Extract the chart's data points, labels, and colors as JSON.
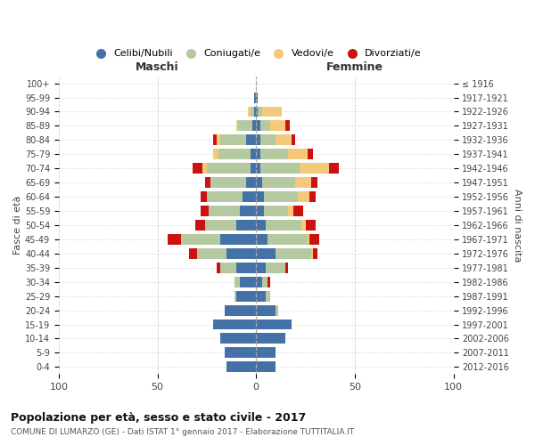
{
  "age_groups": [
    "0-4",
    "5-9",
    "10-14",
    "15-19",
    "20-24",
    "25-29",
    "30-34",
    "35-39",
    "40-44",
    "45-49",
    "50-54",
    "55-59",
    "60-64",
    "65-69",
    "70-74",
    "75-79",
    "80-84",
    "85-89",
    "90-94",
    "95-99",
    "100+"
  ],
  "birth_years": [
    "2012-2016",
    "2007-2011",
    "2002-2006",
    "1997-2001",
    "1992-1996",
    "1987-1991",
    "1982-1986",
    "1977-1981",
    "1972-1976",
    "1967-1971",
    "1962-1966",
    "1957-1961",
    "1952-1956",
    "1947-1951",
    "1942-1946",
    "1937-1941",
    "1932-1936",
    "1927-1931",
    "1922-1926",
    "1917-1921",
    "≤ 1916"
  ],
  "maschi": {
    "celibi": [
      15,
      16,
      18,
      22,
      16,
      10,
      8,
      10,
      15,
      18,
      10,
      8,
      7,
      5,
      3,
      3,
      5,
      2,
      1,
      1,
      0
    ],
    "coniugati": [
      0,
      0,
      0,
      0,
      0,
      1,
      3,
      8,
      15,
      20,
      16,
      16,
      18,
      18,
      22,
      16,
      13,
      7,
      2,
      0,
      0
    ],
    "vedovi": [
      0,
      0,
      0,
      0,
      0,
      0,
      0,
      0,
      0,
      0,
      0,
      0,
      0,
      0,
      2,
      3,
      2,
      1,
      1,
      0,
      0
    ],
    "divorziati": [
      0,
      0,
      0,
      0,
      0,
      0,
      0,
      2,
      4,
      7,
      5,
      4,
      3,
      3,
      5,
      0,
      2,
      0,
      0,
      0,
      0
    ]
  },
  "femmine": {
    "nubili": [
      10,
      10,
      15,
      18,
      10,
      5,
      3,
      5,
      10,
      6,
      5,
      4,
      4,
      3,
      2,
      2,
      2,
      2,
      1,
      1,
      0
    ],
    "coniugate": [
      0,
      0,
      0,
      0,
      1,
      2,
      3,
      10,
      18,
      20,
      18,
      12,
      17,
      17,
      20,
      14,
      8,
      5,
      2,
      0,
      0
    ],
    "vedove": [
      0,
      0,
      0,
      0,
      0,
      0,
      0,
      0,
      1,
      1,
      2,
      3,
      6,
      8,
      15,
      10,
      8,
      8,
      10,
      0,
      0
    ],
    "divorziate": [
      0,
      0,
      0,
      0,
      0,
      0,
      1,
      1,
      2,
      5,
      5,
      5,
      3,
      3,
      5,
      3,
      2,
      2,
      0,
      0,
      0
    ]
  },
  "colors": {
    "celibi": "#4472a8",
    "coniugati": "#b5c9a0",
    "vedovi": "#f5c97a",
    "divorziati": "#cc1111"
  },
  "title": "Popolazione per età, sesso e stato civile - 2017",
  "subtitle": "COMUNE DI LUMARZO (GE) - Dati ISTAT 1° gennaio 2017 - Elaborazione TUTTITALIA.IT",
  "ylabel": "Fasce di età",
  "ylabel_right": "Anni di nascita",
  "xlabel_left": "Maschi",
  "xlabel_right": "Femmine",
  "xlim": 100,
  "background_color": "#ffffff",
  "grid_color": "#cccccc"
}
